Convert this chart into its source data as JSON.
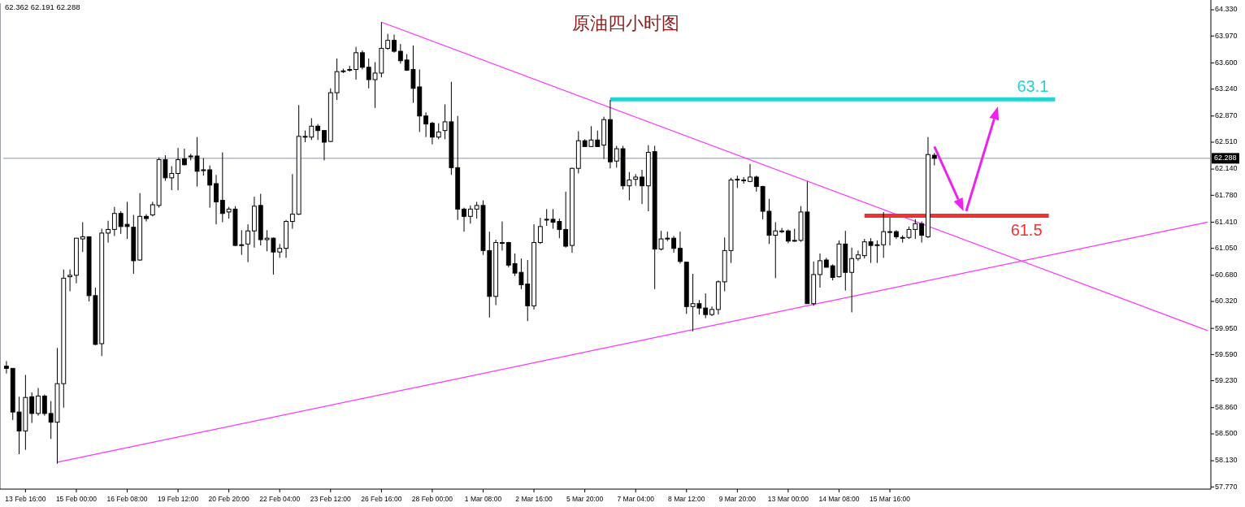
{
  "chart_data": {
    "type": "candlestick",
    "title": "原油四小时图",
    "color": "#000000",
    "categories": [
      null,
      null,
      null,
      "13 Feb 16:00",
      null,
      null,
      null,
      null,
      null,
      null,
      null,
      "15 Feb 00:00",
      null,
      null,
      null,
      null,
      null,
      null,
      null,
      "16 Feb 08:00",
      null,
      null,
      null,
      null,
      null,
      null,
      null,
      "19 Feb 12:00",
      null,
      null,
      null,
      null,
      null,
      null,
      null,
      "20 Feb 20:00",
      null,
      null,
      null,
      null,
      null,
      null,
      null,
      "22 Feb 04:00",
      null,
      null,
      null,
      null,
      null,
      null,
      null,
      "23 Feb 12:00",
      null,
      null,
      null,
      null,
      null,
      null,
      null,
      "26 Feb 16:00",
      null,
      null,
      null,
      null,
      null,
      null,
      null,
      "28 Feb 00:00",
      null,
      null,
      null,
      null,
      null,
      null,
      null,
      "1 Mar 08:00",
      null,
      null,
      null,
      null,
      null,
      null,
      null,
      "2 Mar 16:00",
      null,
      null,
      null,
      null,
      null,
      null,
      null,
      "5 Mar 20:00",
      null,
      null,
      null,
      null,
      null,
      null,
      null,
      "7 Mar 04:00",
      null,
      null,
      null,
      null,
      null,
      null,
      null,
      "8 Mar 12:00",
      null,
      null,
      null,
      null,
      null,
      null,
      null,
      "9 Mar 20:00",
      null,
      null,
      null,
      null,
      null,
      null,
      null,
      "13 Mar 00:00",
      null,
      null,
      null,
      null,
      null,
      null,
      null,
      "14 Mar 08:00",
      null,
      null,
      null,
      null,
      null,
      null,
      null,
      "15 Mar 16:00",
      null,
      null,
      null,
      null,
      null,
      null,
      null,
      null,
      null,
      null,
      null,
      null,
      null,
      null,
      null,
      null,
      null,
      null,
      null,
      null,
      null,
      null,
      null,
      null,
      null,
      null,
      null,
      null,
      null,
      null,
      null,
      null,
      null,
      null,
      null,
      null,
      null,
      null,
      null,
      null,
      null,
      null,
      null,
      null,
      null,
      null,
      null,
      null,
      null,
      null
    ],
    "ohlc": [
      [
        59.43,
        59.5,
        59.33,
        59.4
      ],
      [
        59.4,
        59.4,
        58.69,
        58.8
      ],
      [
        58.8,
        59.01,
        58.22,
        58.54
      ],
      [
        58.54,
        59.31,
        58.28,
        59.0
      ],
      [
        59.01,
        59.07,
        58.65,
        58.78
      ],
      [
        58.78,
        59.13,
        58.75,
        59.02
      ],
      [
        59.02,
        59.04,
        58.75,
        58.78
      ],
      [
        58.78,
        58.95,
        58.43,
        58.66
      ],
      [
        58.66,
        59.68,
        58.09,
        59.19
      ],
      [
        59.19,
        60.76,
        58.86,
        60.64
      ],
      [
        60.66,
        60.76,
        60.46,
        60.68
      ],
      [
        60.68,
        61.19,
        60.57,
        61.19
      ],
      [
        61.18,
        61.41,
        61.0,
        61.21
      ],
      [
        61.21,
        61.21,
        60.32,
        60.4
      ],
      [
        60.4,
        60.51,
        59.72,
        59.73
      ],
      [
        59.74,
        61.32,
        59.57,
        61.26
      ],
      [
        61.26,
        61.43,
        61.13,
        61.31
      ],
      [
        61.31,
        61.62,
        61.22,
        61.53
      ],
      [
        61.53,
        61.56,
        61.25,
        61.35
      ],
      [
        61.38,
        61.69,
        61.18,
        61.35
      ],
      [
        61.34,
        61.51,
        60.7,
        60.88
      ],
      [
        60.89,
        61.81,
        60.88,
        61.49
      ],
      [
        61.49,
        61.52,
        61.42,
        61.46
      ],
      [
        61.51,
        61.69,
        61.49,
        61.65
      ],
      [
        61.64,
        62.3,
        61.61,
        62.27
      ],
      [
        62.27,
        62.33,
        61.98,
        62.02
      ],
      [
        62.02,
        62.18,
        61.85,
        62.08
      ],
      [
        62.08,
        62.43,
        61.85,
        62.27
      ],
      [
        62.28,
        62.42,
        62.19,
        62.2
      ],
      [
        62.32,
        62.35,
        62.26,
        62.32
      ],
      [
        62.32,
        62.58,
        61.9,
        62.11
      ],
      [
        62.12,
        62.29,
        62.05,
        62.13
      ],
      [
        62.13,
        62.19,
        61.61,
        61.92
      ],
      [
        61.94,
        62.06,
        61.38,
        61.69
      ],
      [
        61.71,
        62.37,
        61.41,
        61.53
      ],
      [
        61.55,
        61.62,
        61.46,
        61.59
      ],
      [
        61.59,
        61.63,
        61.08,
        61.09
      ],
      [
        61.1,
        61.3,
        60.96,
        61.1
      ],
      [
        61.11,
        61.38,
        60.86,
        61.29
      ],
      [
        61.29,
        61.76,
        61.06,
        61.63
      ],
      [
        61.64,
        61.8,
        61.09,
        61.17
      ],
      [
        61.17,
        61.3,
        61.01,
        61.19
      ],
      [
        61.19,
        61.2,
        60.69,
        61.0
      ],
      [
        61.0,
        61.11,
        60.92,
        61.05
      ],
      [
        61.05,
        61.44,
        60.92,
        61.42
      ],
      [
        61.42,
        62.07,
        61.32,
        61.52
      ],
      [
        61.52,
        63.02,
        61.51,
        62.59
      ],
      [
        62.59,
        62.67,
        62.51,
        62.59
      ],
      [
        62.58,
        62.84,
        62.54,
        62.73
      ],
      [
        62.73,
        62.76,
        62.54,
        62.67
      ],
      [
        62.67,
        62.67,
        62.26,
        62.51
      ],
      [
        62.52,
        63.25,
        62.51,
        63.19
      ],
      [
        63.19,
        63.66,
        63.09,
        63.48
      ],
      [
        63.49,
        63.52,
        63.46,
        63.49
      ],
      [
        63.51,
        63.56,
        63.48,
        63.51
      ],
      [
        63.51,
        63.82,
        63.37,
        63.74
      ],
      [
        63.74,
        63.77,
        63.51,
        63.54
      ],
      [
        63.54,
        63.66,
        63.25,
        63.37
      ],
      [
        63.37,
        63.61,
        62.98,
        63.46
      ],
      [
        63.46,
        64.16,
        63.4,
        63.8
      ],
      [
        63.8,
        64.0,
        63.78,
        63.91
      ],
      [
        63.91,
        63.99,
        63.74,
        63.76
      ],
      [
        63.76,
        63.86,
        63.59,
        63.63
      ],
      [
        63.64,
        63.72,
        63.49,
        63.5
      ],
      [
        63.51,
        63.84,
        63.05,
        63.25
      ],
      [
        63.27,
        63.51,
        62.65,
        62.87
      ],
      [
        62.87,
        62.92,
        62.58,
        62.76
      ],
      [
        62.77,
        62.79,
        62.48,
        62.58
      ],
      [
        62.58,
        62.77,
        62.55,
        62.65
      ],
      [
        62.67,
        63.03,
        62.55,
        62.79
      ],
      [
        62.79,
        63.34,
        62.06,
        62.16
      ],
      [
        62.16,
        62.87,
        61.44,
        61.59
      ],
      [
        61.59,
        61.61,
        61.28,
        61.49
      ],
      [
        61.49,
        61.64,
        61.39,
        61.59
      ],
      [
        61.59,
        61.69,
        61.46,
        61.64
      ],
      [
        61.64,
        61.71,
        60.96,
        61.02
      ],
      [
        61.02,
        61.28,
        60.1,
        60.39
      ],
      [
        60.39,
        61.17,
        60.27,
        61.13
      ],
      [
        61.13,
        61.42,
        61.02,
        61.13
      ],
      [
        61.13,
        61.14,
        60.79,
        60.82
      ],
      [
        60.84,
        60.98,
        60.67,
        60.71
      ],
      [
        60.72,
        60.91,
        60.49,
        60.55
      ],
      [
        60.56,
        60.89,
        60.05,
        60.26
      ],
      [
        60.26,
        61.38,
        60.21,
        61.13
      ],
      [
        61.13,
        61.47,
        61.11,
        61.35
      ],
      [
        61.45,
        61.59,
        61.36,
        61.45
      ],
      [
        61.45,
        61.59,
        61.32,
        61.41
      ],
      [
        61.42,
        61.46,
        61.19,
        61.31
      ],
      [
        61.31,
        61.83,
        61.06,
        61.08
      ],
      [
        61.09,
        62.16,
        60.99,
        62.15
      ],
      [
        62.15,
        62.66,
        62.08,
        62.53
      ],
      [
        62.53,
        62.55,
        62.45,
        62.45
      ],
      [
        62.45,
        62.73,
        62.45,
        62.54
      ],
      [
        62.54,
        62.67,
        62.45,
        62.45
      ],
      [
        62.47,
        62.86,
        62.28,
        62.82
      ],
      [
        62.82,
        63.09,
        62.15,
        62.24
      ],
      [
        62.25,
        62.46,
        62.16,
        62.42
      ],
      [
        62.42,
        62.46,
        61.86,
        61.91
      ],
      [
        61.91,
        62.1,
        61.71,
        61.99
      ],
      [
        62.0,
        62.07,
        61.91,
        62.03
      ],
      [
        62.03,
        62.13,
        61.66,
        61.91
      ],
      [
        61.91,
        62.47,
        61.56,
        62.37
      ],
      [
        62.38,
        62.46,
        60.49,
        61.04
      ],
      [
        61.04,
        61.29,
        61.02,
        61.18
      ],
      [
        61.19,
        61.28,
        61.15,
        61.19
      ],
      [
        61.19,
        61.22,
        60.99,
        61.05
      ],
      [
        61.05,
        61.28,
        60.84,
        60.87
      ],
      [
        60.86,
        60.86,
        60.15,
        60.25
      ],
      [
        60.25,
        60.7,
        59.91,
        60.29
      ],
      [
        60.29,
        60.34,
        60.14,
        60.23
      ],
      [
        60.23,
        60.43,
        60.09,
        60.14
      ],
      [
        60.14,
        60.25,
        60.12,
        60.21
      ],
      [
        60.21,
        60.61,
        60.14,
        60.59
      ],
      [
        60.59,
        61.2,
        60.46,
        61.02
      ],
      [
        61.02,
        62.02,
        60.85,
        61.99
      ],
      [
        62.0,
        62.05,
        61.88,
        62.0
      ],
      [
        61.99,
        62.03,
        61.94,
        61.99
      ],
      [
        61.97,
        62.21,
        61.96,
        62.03
      ],
      [
        62.03,
        62.05,
        61.83,
        61.9
      ],
      [
        61.9,
        61.91,
        61.45,
        61.56
      ],
      [
        61.56,
        61.73,
        61.11,
        61.23
      ],
      [
        61.23,
        61.41,
        60.64,
        61.29
      ],
      [
        61.29,
        61.33,
        61.26,
        61.29
      ],
      [
        61.29,
        61.31,
        61.12,
        61.15
      ],
      [
        61.16,
        61.32,
        61.14,
        61.16
      ],
      [
        61.16,
        61.63,
        61.14,
        61.55
      ],
      [
        61.55,
        61.97,
        60.29,
        60.29
      ],
      [
        60.29,
        60.87,
        60.26,
        60.69
      ],
      [
        60.69,
        60.98,
        60.51,
        60.88
      ],
      [
        60.89,
        60.92,
        60.79,
        60.79
      ],
      [
        60.81,
        60.83,
        60.61,
        60.65
      ],
      [
        60.66,
        61.16,
        60.65,
        61.11
      ],
      [
        61.11,
        61.29,
        60.47,
        60.72
      ],
      [
        60.72,
        61.06,
        60.17,
        60.91
      ],
      [
        60.91,
        61.02,
        60.88,
        60.96
      ],
      [
        60.95,
        61.18,
        60.91,
        61.14
      ],
      [
        61.14,
        61.19,
        60.85,
        61.09
      ],
      [
        61.1,
        61.16,
        60.85,
        61.1
      ],
      [
        61.1,
        61.55,
        60.92,
        61.28
      ],
      [
        61.28,
        61.47,
        61.09,
        61.28
      ],
      [
        61.28,
        61.3,
        61.18,
        61.21
      ],
      [
        61.2,
        61.23,
        61.13,
        61.2
      ],
      [
        61.2,
        61.35,
        61.18,
        61.31
      ],
      [
        61.31,
        61.45,
        61.18,
        61.39
      ],
      [
        61.39,
        61.42,
        61.13,
        61.23
      ],
      [
        61.21,
        62.58,
        61.19,
        62.34
      ],
      [
        62.33,
        62.362,
        62.191,
        62.288
      ],
      null,
      null,
      null,
      null,
      null,
      null,
      null,
      null,
      null,
      null,
      null,
      null,
      null,
      null,
      null,
      null,
      null,
      null,
      null,
      null,
      null,
      null,
      null,
      null,
      null,
      null,
      null,
      null,
      null,
      null,
      null,
      null,
      null,
      null,
      null,
      null,
      null,
      null,
      null,
      null,
      null,
      null,
      null
    ],
    "series": [
      {
        "type": "line",
        "color": "#ff33ff",
        "values": [
          null,
          null,
          null,
          null,
          null,
          null,
          null,
          null,
          null,
          null,
          null,
          null,
          null,
          null,
          null,
          null,
          null,
          null,
          null,
          null,
          null,
          null,
          null,
          null,
          null,
          null,
          null,
          null,
          null,
          null,
          null,
          null,
          null,
          null,
          null,
          null,
          null,
          null,
          null,
          null,
          null,
          null,
          null,
          null,
          null,
          null,
          null,
          null,
          null,
          null,
          null,
          null,
          null,
          null,
          null,
          null,
          null,
          null,
          null,
          64.16,
          null,
          null,
          null,
          null,
          null,
          null,
          null,
          null,
          null,
          null,
          null,
          null,
          null,
          null,
          null,
          null,
          null,
          null,
          null,
          null,
          null,
          null,
          null,
          null,
          null,
          null,
          null,
          null,
          null,
          null,
          null,
          null,
          null,
          null,
          null,
          null,
          null,
          null,
          null,
          null,
          null,
          null,
          null,
          null,
          null,
          null,
          null,
          null,
          null,
          null,
          null,
          null,
          null,
          null,
          null,
          null,
          null,
          null,
          null,
          null,
          null,
          null,
          null,
          null,
          null,
          null,
          null,
          null,
          null,
          null,
          null,
          null,
          null,
          null,
          null,
          null,
          null,
          null,
          null,
          null,
          null,
          null,
          null,
          null,
          null,
          null,
          null,
          null,
          null,
          null,
          null,
          null,
          null,
          null,
          null,
          null,
          null,
          null,
          null,
          null,
          null,
          null,
          null,
          null,
          null,
          null,
          null,
          null,
          null,
          null,
          null,
          null,
          null,
          null,
          null,
          null,
          null,
          null,
          null,
          null,
          null,
          null,
          null,
          null,
          null,
          null,
          null,
          null,
          null,
          59.92
        ]
      },
      {
        "type": "line",
        "color": "#ff33ff",
        "values": [
          null,
          null,
          null,
          null,
          null,
          null,
          null,
          null,
          58.11,
          null,
          null,
          null,
          null,
          null,
          null,
          null,
          null,
          null,
          null,
          null,
          null,
          null,
          null,
          null,
          null,
          null,
          null,
          null,
          null,
          null,
          null,
          null,
          null,
          null,
          null,
          null,
          null,
          null,
          null,
          null,
          null,
          null,
          null,
          null,
          null,
          null,
          null,
          null,
          null,
          null,
          null,
          null,
          null,
          null,
          null,
          null,
          null,
          null,
          null,
          null,
          null,
          null,
          null,
          null,
          null,
          null,
          null,
          null,
          null,
          null,
          null,
          null,
          null,
          null,
          null,
          null,
          null,
          null,
          null,
          null,
          null,
          null,
          null,
          null,
          null,
          null,
          null,
          null,
          null,
          null,
          null,
          null,
          null,
          null,
          null,
          null,
          null,
          null,
          null,
          null,
          null,
          null,
          null,
          null,
          null,
          null,
          null,
          null,
          null,
          null,
          null,
          null,
          null,
          null,
          null,
          null,
          null,
          null,
          null,
          null,
          null,
          null,
          null,
          null,
          null,
          null,
          null,
          null,
          null,
          null,
          null,
          null,
          null,
          null,
          null,
          null,
          null,
          null,
          null,
          null,
          null,
          null,
          null,
          null,
          null,
          null,
          null,
          null,
          null,
          null,
          null,
          null,
          null,
          null,
          null,
          null,
          null,
          null,
          null,
          null,
          null,
          null,
          null,
          null,
          null,
          null,
          null,
          null,
          null,
          null,
          null,
          null,
          null,
          null,
          null,
          null,
          null,
          null,
          null,
          null,
          null,
          null,
          null,
          null,
          null,
          null,
          null,
          null,
          null,
          61.41
        ]
      },
      {
        "type": "line",
        "color": "#22d3d3",
        "values": [
          null,
          null,
          null,
          null,
          null,
          null,
          null,
          null,
          null,
          null,
          null,
          null,
          null,
          null,
          null,
          null,
          null,
          null,
          null,
          null,
          null,
          null,
          null,
          null,
          null,
          null,
          null,
          null,
          null,
          null,
          null,
          null,
          null,
          null,
          null,
          null,
          null,
          null,
          null,
          null,
          null,
          null,
          null,
          null,
          null,
          null,
          null,
          null,
          null,
          null,
          null,
          null,
          null,
          null,
          null,
          null,
          null,
          null,
          null,
          null,
          null,
          null,
          null,
          null,
          null,
          null,
          null,
          null,
          null,
          null,
          null,
          null,
          null,
          null,
          null,
          null,
          null,
          null,
          null,
          null,
          null,
          null,
          null,
          null,
          null,
          null,
          null,
          null,
          null,
          null,
          null,
          null,
          null,
          null,
          null,
          63.1,
          null,
          null,
          null,
          null,
          null,
          null,
          null,
          null,
          null,
          null,
          null,
          null,
          null,
          null,
          null,
          null,
          null,
          null,
          null,
          null,
          null,
          null,
          null,
          null,
          null,
          null,
          null,
          null,
          null,
          null,
          null,
          null,
          null,
          null,
          null,
          null,
          null,
          null,
          null,
          null,
          null,
          null,
          null,
          null,
          null,
          null,
          null,
          null,
          null,
          null,
          null,
          null,
          null,
          null,
          null,
          null,
          null,
          null,
          null,
          null,
          null,
          null,
          null,
          null,
          null,
          null,
          null,
          null,
          null,
          63.1,
          null,
          null,
          null,
          null,
          null,
          null,
          null,
          null,
          null,
          null,
          null,
          null,
          null,
          null,
          null,
          null,
          null,
          null,
          null,
          null,
          null,
          null,
          null,
          null
        ],
        "value_labels": [
          null,
          null,
          null,
          null,
          null,
          null,
          null,
          null,
          null,
          null,
          null,
          null,
          null,
          null,
          null,
          null,
          null,
          null,
          null,
          null,
          null,
          null,
          null,
          null,
          null,
          null,
          null,
          null,
          null,
          null,
          null,
          null,
          null,
          null,
          null,
          null,
          null,
          null,
          null,
          null,
          null,
          null,
          null,
          null,
          null,
          null,
          null,
          null,
          null,
          null,
          null,
          null,
          null,
          null,
          null,
          null,
          null,
          null,
          null,
          null,
          null,
          null,
          null,
          null,
          null,
          null,
          null,
          null,
          null,
          null,
          null,
          null,
          null,
          null,
          null,
          null,
          null,
          null,
          null,
          null,
          null,
          null,
          null,
          null,
          null,
          null,
          null,
          null,
          null,
          null,
          null,
          null,
          null,
          null,
          null,
          null,
          null,
          null,
          null,
          null,
          null,
          null,
          null,
          null,
          null,
          null,
          null,
          null,
          null,
          null,
          null,
          null,
          null,
          null,
          null,
          null,
          null,
          null,
          null,
          null,
          null,
          null,
          null,
          null,
          null,
          null,
          null,
          null,
          null,
          null,
          null,
          null,
          null,
          null,
          null,
          null,
          null,
          null,
          null,
          null,
          null,
          null,
          null,
          null,
          null,
          null,
          null,
          null,
          null,
          null,
          null,
          null,
          null,
          null,
          null,
          null,
          null,
          null,
          null,
          null,
          null,
          null,
          null,
          null,
          null,
          "63.1",
          null,
          null,
          null,
          null,
          null,
          null,
          null,
          null,
          null,
          null,
          null,
          null,
          null,
          null,
          null,
          null,
          null,
          null,
          null,
          null,
          null,
          null,
          null,
          null
        ]
      },
      {
        "type": "line",
        "color": "#ee3333",
        "values": [
          null,
          null,
          null,
          null,
          null,
          null,
          null,
          null,
          null,
          null,
          null,
          null,
          null,
          null,
          null,
          null,
          null,
          null,
          null,
          null,
          null,
          null,
          null,
          null,
          null,
          null,
          null,
          null,
          null,
          null,
          null,
          null,
          null,
          null,
          null,
          null,
          null,
          null,
          null,
          null,
          null,
          null,
          null,
          null,
          null,
          null,
          null,
          null,
          null,
          null,
          null,
          null,
          null,
          null,
          null,
          null,
          null,
          null,
          null,
          null,
          null,
          null,
          null,
          null,
          null,
          null,
          null,
          null,
          null,
          null,
          null,
          null,
          null,
          null,
          null,
          null,
          null,
          null,
          null,
          null,
          null,
          null,
          null,
          null,
          null,
          null,
          null,
          null,
          null,
          null,
          null,
          null,
          null,
          null,
          null,
          null,
          null,
          null,
          null,
          null,
          null,
          null,
          null,
          null,
          null,
          null,
          null,
          null,
          null,
          null,
          null,
          null,
          null,
          null,
          null,
          null,
          null,
          null,
          null,
          null,
          null,
          null,
          null,
          null,
          null,
          null,
          null,
          null,
          null,
          null,
          null,
          null,
          null,
          null,
          null,
          61.5,
          null,
          null,
          null,
          null,
          null,
          null,
          null,
          null,
          null,
          null,
          null,
          null,
          null,
          null,
          null,
          null,
          null,
          null,
          null,
          null,
          null,
          null,
          null,
          null,
          null,
          null,
          null,
          null,
          61.5,
          null,
          null,
          null,
          null,
          null,
          null,
          null,
          null,
          null,
          null,
          null,
          null,
          null,
          null,
          null,
          null,
          null,
          null,
          null,
          null,
          null,
          null,
          null,
          null,
          null
        ],
        "value_labels": [
          null,
          null,
          null,
          null,
          null,
          null,
          null,
          null,
          null,
          null,
          null,
          null,
          null,
          null,
          null,
          null,
          null,
          null,
          null,
          null,
          null,
          null,
          null,
          null,
          null,
          null,
          null,
          null,
          null,
          null,
          null,
          null,
          null,
          null,
          null,
          null,
          null,
          null,
          null,
          null,
          null,
          null,
          null,
          null,
          null,
          null,
          null,
          null,
          null,
          null,
          null,
          null,
          null,
          null,
          null,
          null,
          null,
          null,
          null,
          null,
          null,
          null,
          null,
          null,
          null,
          null,
          null,
          null,
          null,
          null,
          null,
          null,
          null,
          null,
          null,
          null,
          null,
          null,
          null,
          null,
          null,
          null,
          null,
          null,
          null,
          null,
          null,
          null,
          null,
          null,
          null,
          null,
          null,
          null,
          null,
          null,
          null,
          null,
          null,
          null,
          null,
          null,
          null,
          null,
          null,
          null,
          null,
          null,
          null,
          null,
          null,
          null,
          null,
          null,
          null,
          null,
          null,
          null,
          null,
          null,
          null,
          null,
          null,
          null,
          null,
          null,
          null,
          null,
          null,
          null,
          null,
          null,
          null,
          null,
          null,
          null,
          null,
          null,
          null,
          null,
          null,
          null,
          null,
          null,
          null,
          null,
          null,
          null,
          null,
          null,
          null,
          null,
          null,
          null,
          null,
          null,
          null,
          null,
          null,
          null,
          null,
          null,
          null,
          null,
          "61.5",
          null,
          null,
          null,
          null,
          null,
          null,
          null,
          null,
          null,
          null,
          null,
          null,
          null,
          null,
          null,
          null,
          null,
          null,
          null,
          null,
          null,
          null,
          null,
          null,
          null
        ]
      }
    ],
    "ref_lines": [
      {
        "axis": "y",
        "value": 62.288,
        "label": "62.288",
        "color": "#8c96a0"
      }
    ],
    "annotations": [
      "62.362 62.191 62.288"
    ],
    "ylim": [
      57.74,
      64.42
    ],
    "yticks": [
      {
        "value": 64.33,
        "label": "64.330"
      },
      {
        "value": 63.97,
        "label": "63.970"
      },
      {
        "value": 63.6,
        "label": "63.600"
      },
      {
        "value": 63.24,
        "label": "63.240"
      },
      {
        "value": 62.87,
        "label": "62.870"
      },
      {
        "value": 62.51,
        "label": "62.510"
      },
      {
        "value": 62.14,
        "label": "62.140"
      },
      {
        "value": 61.78,
        "label": "61.780"
      },
      {
        "value": 61.41,
        "label": "61.410"
      },
      {
        "value": 61.05,
        "label": "61.050"
      },
      {
        "value": 60.68,
        "label": "60.680"
      },
      {
        "value": 60.32,
        "label": "60.320"
      },
      {
        "value": 59.95,
        "label": "59.950"
      },
      {
        "value": 59.59,
        "label": "59.590"
      },
      {
        "value": 59.23,
        "label": "59.230"
      },
      {
        "value": 58.86,
        "label": "58.860"
      },
      {
        "value": 58.5,
        "label": "58.500"
      },
      {
        "value": 58.13,
        "label": "58.130"
      },
      {
        "value": 57.77,
        "label": "57.770"
      }
    ]
  }
}
